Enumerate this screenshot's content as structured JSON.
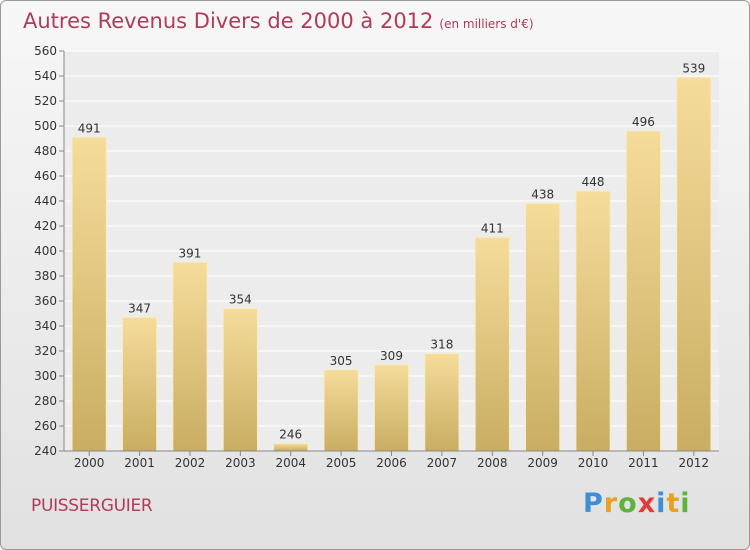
{
  "title": "Autres Revenus Divers de 2000 à 2012",
  "unit": "(en milliers d'€)",
  "location": "PUISSERGUIER",
  "brand": {
    "p": "P",
    "r": "r",
    "o": "o",
    "x": "x",
    "i1": "i",
    "t": "t",
    "i2": "i"
  },
  "colors": {
    "bar_top": "#f5dc9a",
    "bar_bottom": "#c8ad62",
    "title": "#b03a5a"
  },
  "chart_data": {
    "type": "bar",
    "categories": [
      "2000",
      "2001",
      "2002",
      "2003",
      "2004",
      "2005",
      "2006",
      "2007",
      "2008",
      "2009",
      "2010",
      "2011",
      "2012"
    ],
    "values": [
      491,
      347,
      391,
      354,
      246,
      305,
      309,
      318,
      411,
      438,
      448,
      496,
      539
    ],
    "ylim": [
      240,
      560
    ],
    "yticks": [
      240,
      260,
      280,
      300,
      320,
      340,
      360,
      380,
      400,
      420,
      440,
      460,
      480,
      500,
      520,
      540,
      560
    ],
    "grid": true
  }
}
